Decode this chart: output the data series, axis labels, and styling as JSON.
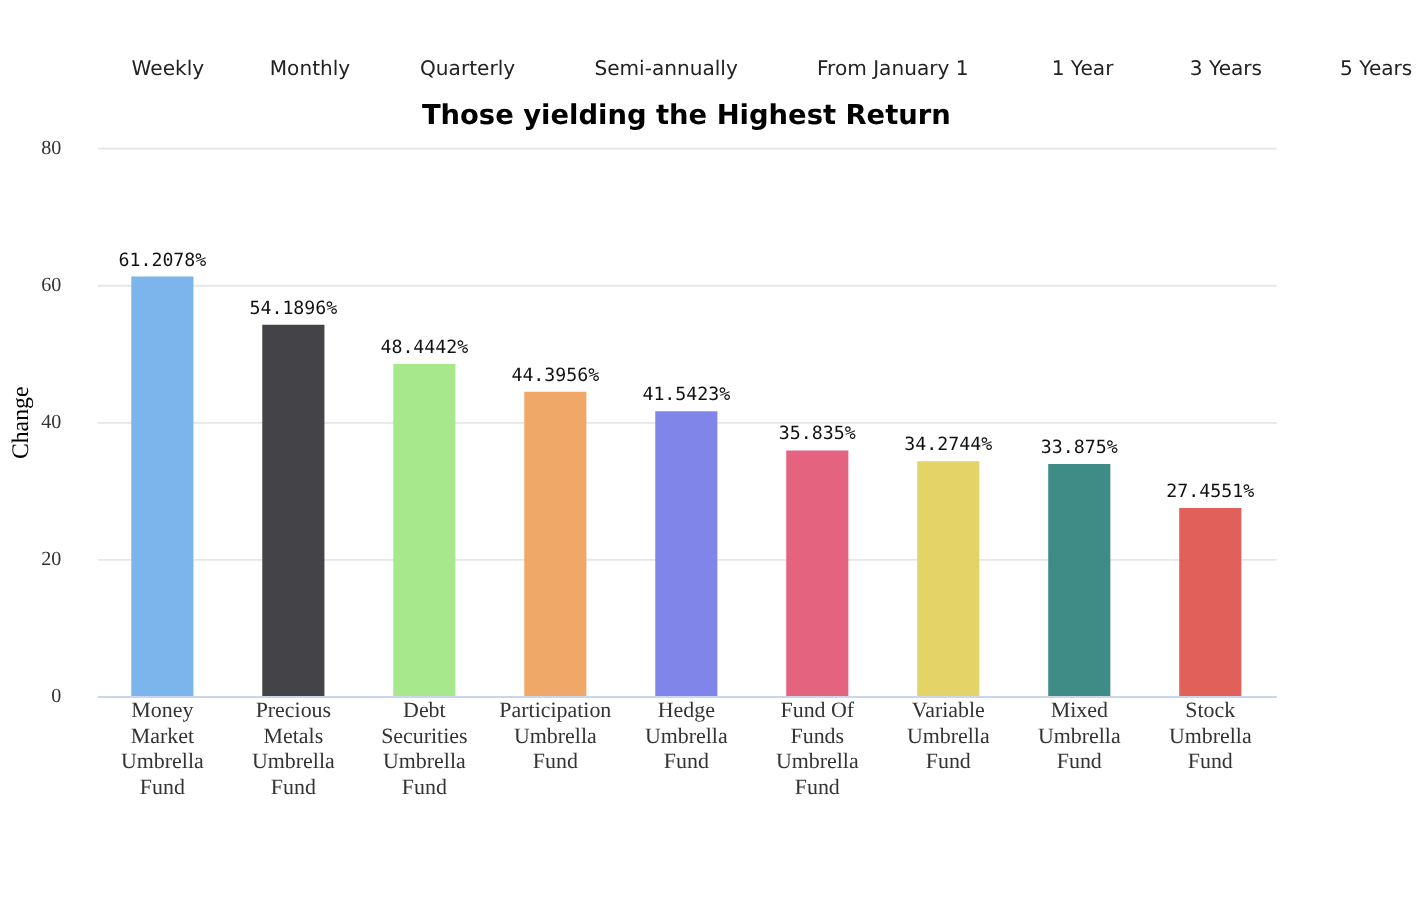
{
  "chart_data": {
    "type": "bar",
    "title": "Those yielding the Highest Return",
    "ylabel": "Change",
    "annotations": [
      "Weekly",
      "Monthly",
      "Quarterly",
      "Semi-annually",
      "From January 1",
      "1 Year",
      "3 Years",
      "5 Years"
    ],
    "categories": [
      "Money Market Umbrella Fund",
      "Precious Metals Umbrella Fund",
      "Debt Securities Umbrella Fund",
      "Participation Umbrella Fund",
      "Hedge Umbrella Fund",
      "Fund Of Funds Umbrella Fund",
      "Variable Umbrella Fund",
      "Mixed Umbrella Fund",
      "Stock Umbrella Fund"
    ],
    "values": [
      61.2078,
      54.1896,
      48.4442,
      44.3956,
      41.5423,
      35.835,
      34.2744,
      33.875,
      27.4551
    ],
    "value_labels": [
      "61.2078%",
      "54.1896%",
      "48.4442%",
      "44.3956%",
      "41.5423%",
      "35.835%",
      "34.2744%",
      "33.875%",
      "27.4551%"
    ],
    "colors": [
      "#7cb5ec",
      "#434348",
      "#a6e88b",
      "#f0a868",
      "#8085e9",
      "#e4637f",
      "#e4d468",
      "#3f8c86",
      "#e2605a"
    ],
    "ylim": [
      0,
      80
    ],
    "yticks": [
      0,
      20,
      40,
      60,
      80
    ],
    "grid": "y"
  }
}
